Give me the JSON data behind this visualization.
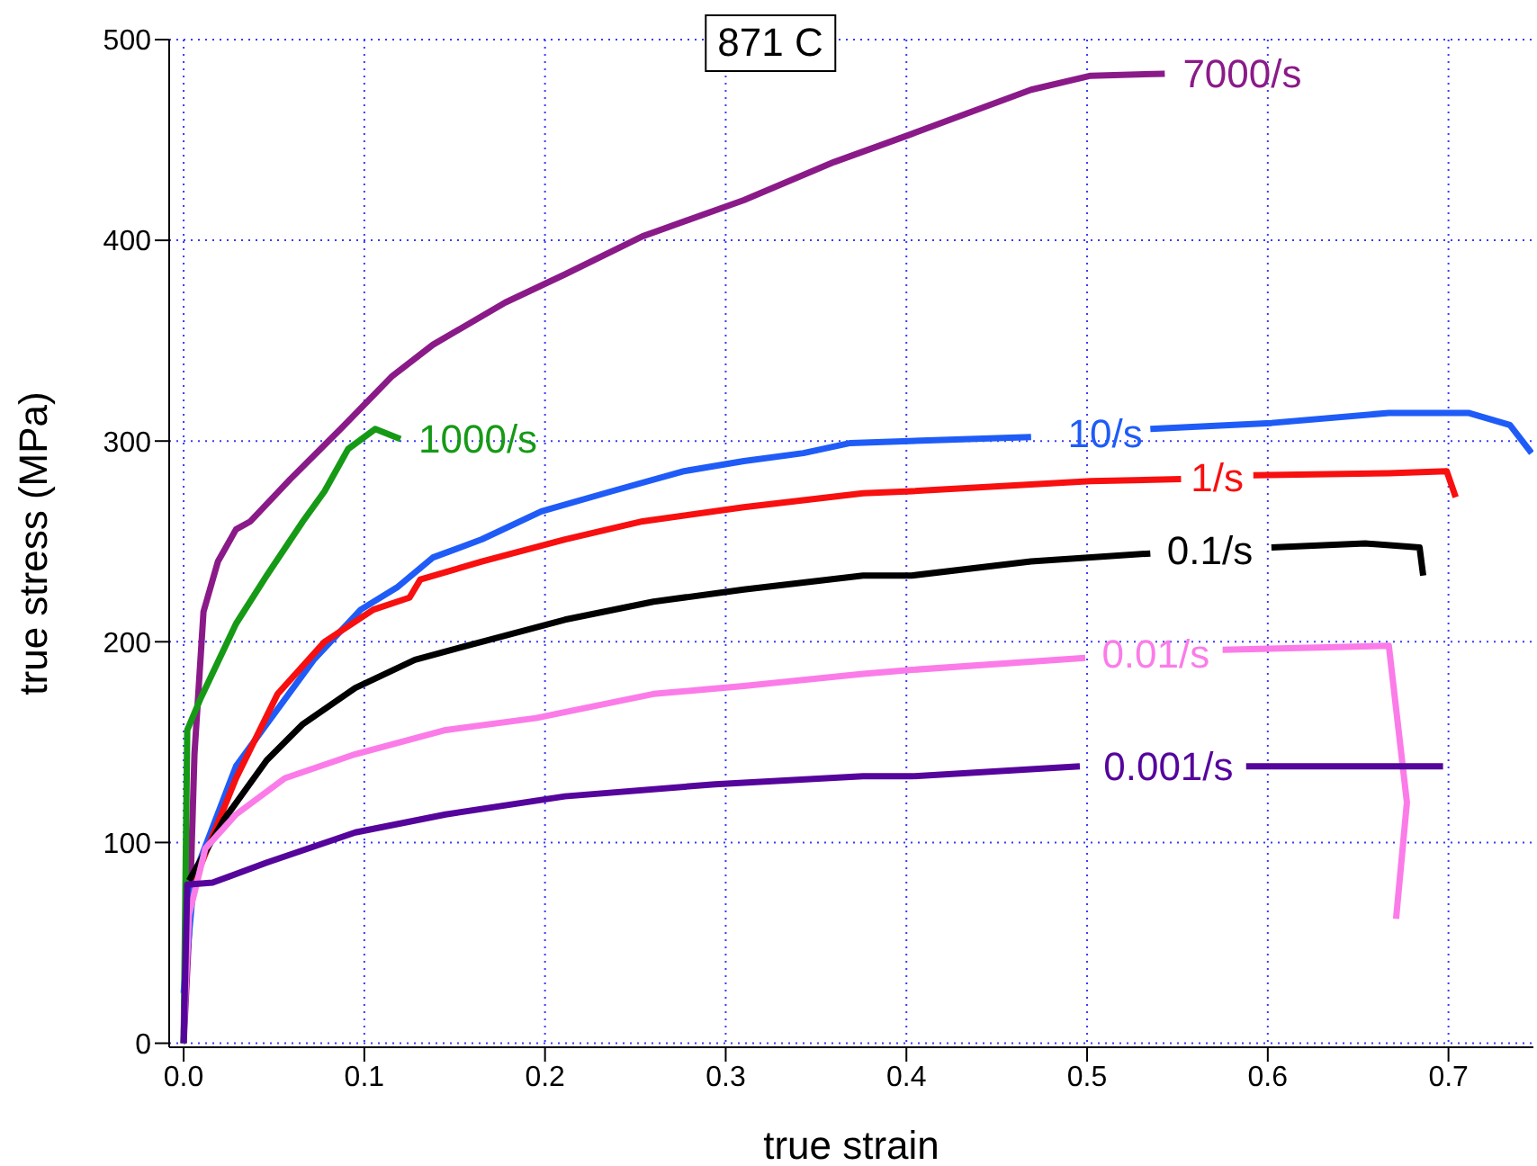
{
  "chart_data": {
    "type": "line",
    "title": "871 C",
    "xlabel": "true strain",
    "ylabel": "true stress (MPa)",
    "xlim": [
      -0.008,
      0.747
    ],
    "ylim": [
      -2,
      500
    ],
    "xticks": [
      {
        "value": 0,
        "label": "0.0"
      },
      0.1,
      0.2,
      0.3,
      0.4,
      0.5,
      0.6,
      0.7
    ],
    "yticks": [
      0,
      100,
      200,
      300,
      400,
      500
    ],
    "grid": true,
    "series": [
      {
        "name": "7000/s",
        "color": "#8b1a89",
        "x": [
          0,
          0.003,
          0.006,
          0.011,
          0.019,
          0.029,
          0.037,
          0.059,
          0.088,
          0.115,
          0.138,
          0.178,
          0.211,
          0.254,
          0.31,
          0.36,
          0.403,
          0.436,
          0.469,
          0.502,
          0.543
        ],
        "values": [
          0,
          55,
          144,
          215,
          240,
          256,
          260,
          281,
          307,
          332,
          348,
          369,
          383,
          402,
          420,
          439,
          453,
          464,
          475,
          482,
          483
        ]
      },
      {
        "name": "1000/s",
        "color": "#169a16",
        "x": [
          0,
          0.002,
          0.009,
          0.029,
          0.046,
          0.066,
          0.078,
          0.091,
          0.106,
          0.12
        ],
        "values": [
          0,
          156,
          171,
          209,
          233,
          260,
          275,
          296,
          306,
          301
        ]
      },
      {
        "name": "10/s",
        "color": "#1f5cf7",
        "x": [
          0,
          0.006,
          0.029,
          0.046,
          0.072,
          0.098,
          0.118,
          0.138,
          0.165,
          0.198,
          0.237,
          0.277,
          0.31,
          0.343,
          0.369,
          0.469,
          0.51,
          0.535,
          0.602,
          0.667,
          0.711,
          0.734,
          0.746
        ],
        "values": [
          25,
          84,
          138,
          159,
          191,
          216,
          227,
          242,
          251,
          265,
          275,
          285,
          290,
          294,
          299,
          302,
          null,
          306,
          309,
          314,
          314,
          308,
          294
        ]
      },
      {
        "name": "1/s",
        "color": "#f80f0f",
        "x": [
          0.006,
          0.029,
          0.052,
          0.078,
          0.105,
          0.125,
          0.131,
          0.165,
          0.211,
          0.254,
          0.31,
          0.376,
          0.403,
          0.502,
          0.552,
          0.572,
          0.592,
          0.667,
          0.699,
          0.704
        ],
        "values": [
          81,
          132,
          174,
          200,
          216,
          222,
          231,
          240,
          251,
          260,
          267,
          274,
          275,
          280,
          281,
          null,
          283,
          284,
          285,
          272
        ]
      },
      {
        "name": "0.1/s",
        "color": "#000000",
        "x": [
          0.003,
          0.022,
          0.046,
          0.066,
          0.095,
          0.128,
          0.165,
          0.211,
          0.26,
          0.31,
          0.376,
          0.403,
          0.469,
          0.535,
          0.568,
          0.602,
          0.654,
          0.684,
          0.686
        ],
        "values": [
          81,
          111,
          141,
          159,
          177,
          191,
          200,
          211,
          220,
          226,
          233,
          233,
          240,
          244,
          null,
          247,
          249,
          247,
          233
        ]
      },
      {
        "name": "0.01/s",
        "color": "#fb7ce8",
        "x": [
          0,
          0.003,
          0.012,
          0.029,
          0.056,
          0.095,
          0.145,
          0.195,
          0.26,
          0.31,
          0.376,
          0.403,
          0.499,
          0.538,
          0.575,
          0.667,
          0.677,
          0.671
        ],
        "values": [
          5,
          64,
          97,
          114,
          132,
          144,
          156,
          162,
          174,
          178,
          184,
          186,
          192,
          null,
          196,
          198,
          120,
          62
        ]
      },
      {
        "name": "0.001/s",
        "color": "#55049c",
        "x": [
          0,
          0.002,
          0.016,
          0.046,
          0.095,
          0.145,
          0.211,
          0.294,
          0.376,
          0.403,
          0.496,
          0.545,
          0.588,
          0.697
        ],
        "values": [
          0,
          79,
          80,
          90,
          105,
          114,
          123,
          129,
          133,
          133,
          138,
          null,
          138,
          138
        ]
      }
    ]
  }
}
